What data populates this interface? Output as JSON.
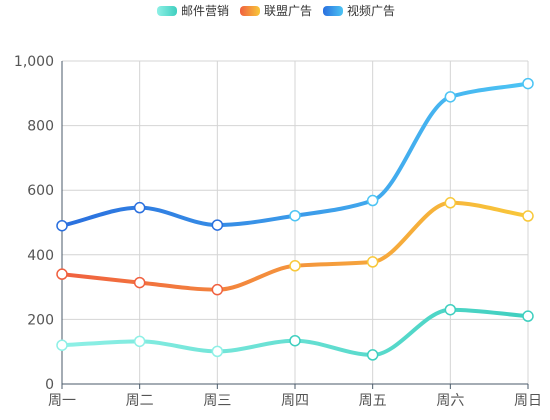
{
  "chart_data": {
    "type": "line",
    "smooth": true,
    "categories": [
      "周一",
      "周二",
      "周三",
      "周四",
      "周五",
      "周六",
      "周日"
    ],
    "ylim": [
      0,
      1000
    ],
    "yticks": [
      0,
      200,
      400,
      600,
      800,
      1000
    ],
    "ytick_labels": [
      "0",
      "200",
      "400",
      "600",
      "800",
      "1,000"
    ],
    "grid": true,
    "legend_position": "top-center",
    "series": [
      {
        "name": "邮件营销",
        "values": [
          120,
          132,
          101,
          134,
          90,
          230,
          210
        ],
        "color_start": "#8ef0e6",
        "color_end": "#3fcfbf"
      },
      {
        "name": "联盟广告",
        "values": [
          340,
          314,
          292,
          366,
          378,
          561,
          520
        ],
        "color_start": "#f0603f",
        "color_end": "#f8c83a"
      },
      {
        "name": "视频广告",
        "values": [
          490,
          546,
          492,
          521,
          568,
          889,
          930
        ],
        "color_start": "#2a6fde",
        "color_end": "#4cc4f4"
      }
    ]
  }
}
